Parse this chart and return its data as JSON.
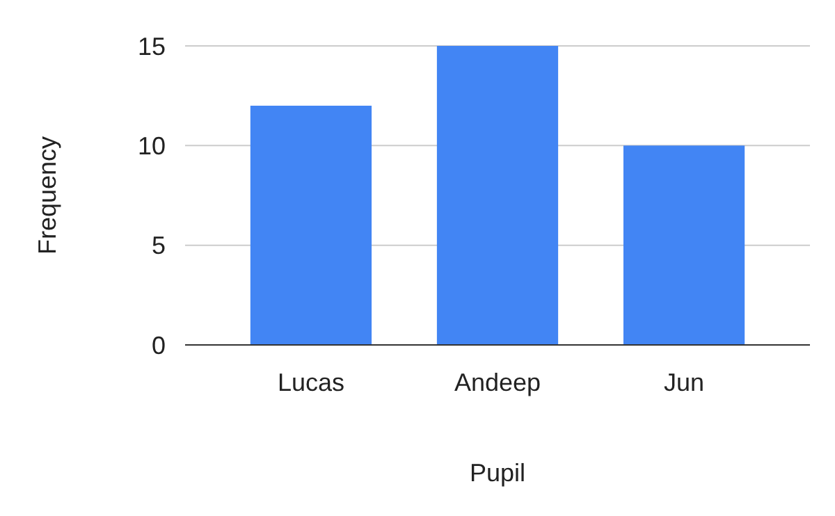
{
  "chart_data": {
    "type": "bar",
    "xlabel": "Pupil",
    "ylabel": "Frequency",
    "categories": [
      "Lucas",
      "Andeep",
      "Jun"
    ],
    "values": [
      12,
      15,
      10
    ],
    "color": "#4285f4",
    "ylim": [
      0,
      15
    ],
    "yticks": [
      0,
      5,
      10,
      15
    ],
    "grid": "y"
  }
}
